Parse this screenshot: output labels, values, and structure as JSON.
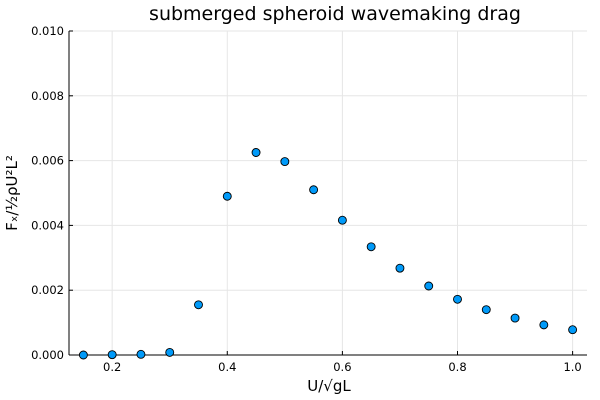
{
  "chart_data": {
    "type": "scatter",
    "title": "submerged spheroid wavemaking drag",
    "xlabel": "U/√gL",
    "ylabel": "Fₓ/½ρU²L²",
    "xlim": [
      0.125,
      1.025
    ],
    "ylim": [
      0.0,
      0.01
    ],
    "xticks": [
      0.2,
      0.4,
      0.6,
      0.8,
      1.0
    ],
    "xtick_labels": [
      "0.2",
      "0.4",
      "0.6",
      "0.8",
      "1.0"
    ],
    "yticks": [
      0.0,
      0.002,
      0.004,
      0.006,
      0.008,
      0.01
    ],
    "ytick_labels": [
      "0.000",
      "0.002",
      "0.004",
      "0.006",
      "0.008",
      "0.010"
    ],
    "grid": true,
    "legend": "none",
    "marker_color": "#009af9",
    "x": [
      0.15,
      0.2,
      0.25,
      0.3,
      0.35,
      0.4,
      0.45,
      0.5,
      0.55,
      0.6,
      0.65,
      0.7,
      0.75,
      0.8,
      0.85,
      0.9,
      0.95,
      1.0
    ],
    "y": [
      0.0,
      1e-05,
      2e-05,
      8e-05,
      0.00155,
      0.0049,
      0.00625,
      0.00597,
      0.0051,
      0.00416,
      0.00334,
      0.00268,
      0.00213,
      0.00172,
      0.0014,
      0.00114,
      0.00093,
      0.00078
    ]
  }
}
